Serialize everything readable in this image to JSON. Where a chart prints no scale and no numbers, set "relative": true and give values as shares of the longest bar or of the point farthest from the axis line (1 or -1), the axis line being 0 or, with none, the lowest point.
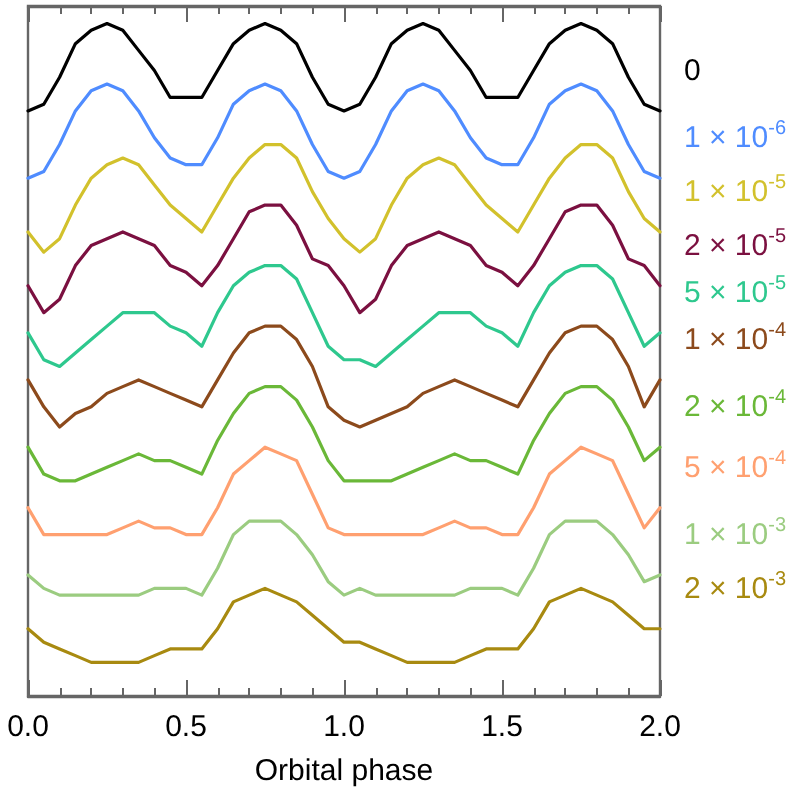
{
  "chart_data": {
    "type": "line",
    "relative": true,
    "xlabel": "Orbital phase",
    "legend": false,
    "marker": "none",
    "line_style": "solid",
    "grid": false,
    "xlim": [
      0,
      2
    ],
    "xticks": [
      {
        "value": 0,
        "label": "0.0"
      },
      {
        "value": 0.5,
        "label": "0.5"
      },
      {
        "value": 1,
        "label": "1.0"
      },
      {
        "value": 1.5,
        "label": "1.5"
      },
      {
        "value": 2,
        "label": "2.0"
      }
    ],
    "x": [
      0,
      0.05,
      0.1,
      0.15,
      0.2,
      0.25,
      0.3,
      0.35,
      0.4,
      0.45,
      0.5,
      0.55,
      0.6,
      0.65,
      0.7,
      0.75,
      0.8,
      0.85,
      0.9,
      0.95,
      1,
      1.05,
      1.1,
      1.15,
      1.2,
      1.25,
      1.3,
      1.35,
      1.4,
      1.45,
      1.5,
      1.55,
      1.6,
      1.65,
      1.7,
      1.75,
      1.8,
      1.85,
      1.9,
      1.95,
      2
    ],
    "series": [
      {
        "name": "0",
        "color": "#000000",
        "values": [
          0.87,
          0.88,
          0.92,
          0.97,
          0.99,
          1.0,
          0.99,
          0.96,
          0.93,
          0.89,
          0.89,
          0.89,
          0.93,
          0.97,
          0.99,
          1.0,
          0.99,
          0.97,
          0.92,
          0.88,
          0.87,
          0.88,
          0.92,
          0.97,
          0.99,
          1.0,
          0.99,
          0.96,
          0.93,
          0.89,
          0.89,
          0.89,
          0.93,
          0.97,
          0.99,
          1.0,
          0.99,
          0.97,
          0.92,
          0.88,
          0.87
        ]
      },
      {
        "name": "1 × 10$^{-6}$",
        "color": "#4f8cff",
        "values": [
          0.77,
          0.78,
          0.82,
          0.87,
          0.9,
          0.91,
          0.9,
          0.87,
          0.83,
          0.8,
          0.79,
          0.79,
          0.83,
          0.88,
          0.9,
          0.91,
          0.9,
          0.87,
          0.82,
          0.78,
          0.77,
          0.78,
          0.82,
          0.87,
          0.9,
          0.91,
          0.9,
          0.87,
          0.83,
          0.8,
          0.79,
          0.79,
          0.83,
          0.88,
          0.9,
          0.91,
          0.9,
          0.87,
          0.82,
          0.78,
          0.77
        ]
      },
      {
        "name": "1 × 10$^{-5}$",
        "color": "#d2c12c",
        "values": [
          0.69,
          0.66,
          0.68,
          0.73,
          0.77,
          0.79,
          0.8,
          0.79,
          0.76,
          0.73,
          0.71,
          0.69,
          0.73,
          0.77,
          0.8,
          0.82,
          0.82,
          0.8,
          0.75,
          0.71,
          0.68,
          0.66,
          0.68,
          0.73,
          0.77,
          0.79,
          0.8,
          0.79,
          0.76,
          0.73,
          0.71,
          0.69,
          0.73,
          0.77,
          0.8,
          0.82,
          0.82,
          0.8,
          0.75,
          0.71,
          0.69
        ]
      },
      {
        "name": "2 × 10$^{-5}$",
        "color": "#7b1040",
        "values": [
          0.61,
          0.57,
          0.59,
          0.64,
          0.67,
          0.68,
          0.69,
          0.68,
          0.67,
          0.64,
          0.63,
          0.61,
          0.64,
          0.68,
          0.72,
          0.73,
          0.73,
          0.7,
          0.65,
          0.64,
          0.61,
          0.57,
          0.59,
          0.64,
          0.67,
          0.68,
          0.69,
          0.68,
          0.67,
          0.64,
          0.63,
          0.61,
          0.64,
          0.68,
          0.72,
          0.73,
          0.73,
          0.7,
          0.65,
          0.64,
          0.61
        ]
      },
      {
        "name": "5 × 10$^{-5}$",
        "color": "#2ec88e",
        "values": [
          0.54,
          0.5,
          0.49,
          0.51,
          0.53,
          0.55,
          0.57,
          0.57,
          0.57,
          0.55,
          0.54,
          0.52,
          0.57,
          0.61,
          0.63,
          0.64,
          0.64,
          0.62,
          0.57,
          0.52,
          0.5,
          0.5,
          0.49,
          0.51,
          0.53,
          0.55,
          0.57,
          0.57,
          0.57,
          0.55,
          0.54,
          0.52,
          0.57,
          0.61,
          0.63,
          0.64,
          0.64,
          0.62,
          0.57,
          0.52,
          0.54
        ]
      },
      {
        "name": "1 × 10$^{-4}$",
        "color": "#8c4a1c",
        "values": [
          0.47,
          0.43,
          0.4,
          0.42,
          0.43,
          0.45,
          0.46,
          0.47,
          0.46,
          0.45,
          0.44,
          0.43,
          0.47,
          0.51,
          0.54,
          0.55,
          0.55,
          0.53,
          0.49,
          0.43,
          0.41,
          0.4,
          0.41,
          0.42,
          0.43,
          0.45,
          0.46,
          0.47,
          0.46,
          0.45,
          0.44,
          0.43,
          0.47,
          0.51,
          0.54,
          0.55,
          0.55,
          0.53,
          0.49,
          0.43,
          0.47
        ]
      },
      {
        "name": "2 × 10$^{-4}$",
        "color": "#6ab838",
        "values": [
          0.37,
          0.33,
          0.32,
          0.32,
          0.33,
          0.34,
          0.35,
          0.36,
          0.35,
          0.35,
          0.34,
          0.33,
          0.38,
          0.42,
          0.45,
          0.46,
          0.46,
          0.44,
          0.4,
          0.35,
          0.32,
          0.32,
          0.32,
          0.32,
          0.33,
          0.34,
          0.35,
          0.36,
          0.35,
          0.35,
          0.34,
          0.33,
          0.38,
          0.42,
          0.45,
          0.46,
          0.46,
          0.44,
          0.4,
          0.35,
          0.37
        ]
      },
      {
        "name": "5 × 10$^{-4}$",
        "color": "#ffa070",
        "values": [
          0.28,
          0.24,
          0.24,
          0.24,
          0.24,
          0.24,
          0.25,
          0.26,
          0.25,
          0.25,
          0.24,
          0.24,
          0.28,
          0.33,
          0.35,
          0.37,
          0.36,
          0.35,
          0.3,
          0.25,
          0.24,
          0.24,
          0.24,
          0.24,
          0.24,
          0.24,
          0.25,
          0.26,
          0.25,
          0.25,
          0.24,
          0.24,
          0.28,
          0.33,
          0.35,
          0.37,
          0.36,
          0.35,
          0.3,
          0.25,
          0.28
        ]
      },
      {
        "name": "1 × 10$^{-3}$",
        "color": "#9bcc80",
        "values": [
          0.18,
          0.16,
          0.15,
          0.15,
          0.15,
          0.15,
          0.15,
          0.15,
          0.16,
          0.16,
          0.16,
          0.15,
          0.19,
          0.24,
          0.26,
          0.26,
          0.26,
          0.24,
          0.21,
          0.17,
          0.15,
          0.16,
          0.15,
          0.15,
          0.15,
          0.15,
          0.15,
          0.15,
          0.16,
          0.16,
          0.16,
          0.15,
          0.19,
          0.24,
          0.26,
          0.26,
          0.26,
          0.24,
          0.21,
          0.17,
          0.18
        ]
      },
      {
        "name": "2 × 10$^{-3}$",
        "color": "#a88a10",
        "values": [
          0.1,
          0.08,
          0.07,
          0.06,
          0.05,
          0.05,
          0.05,
          0.05,
          0.06,
          0.07,
          0.07,
          0.07,
          0.1,
          0.14,
          0.15,
          0.16,
          0.15,
          0.14,
          0.12,
          0.1,
          0.08,
          0.08,
          0.07,
          0.06,
          0.05,
          0.05,
          0.05,
          0.05,
          0.06,
          0.07,
          0.07,
          0.07,
          0.1,
          0.14,
          0.15,
          0.16,
          0.15,
          0.14,
          0.12,
          0.1,
          0.1
        ]
      }
    ]
  }
}
